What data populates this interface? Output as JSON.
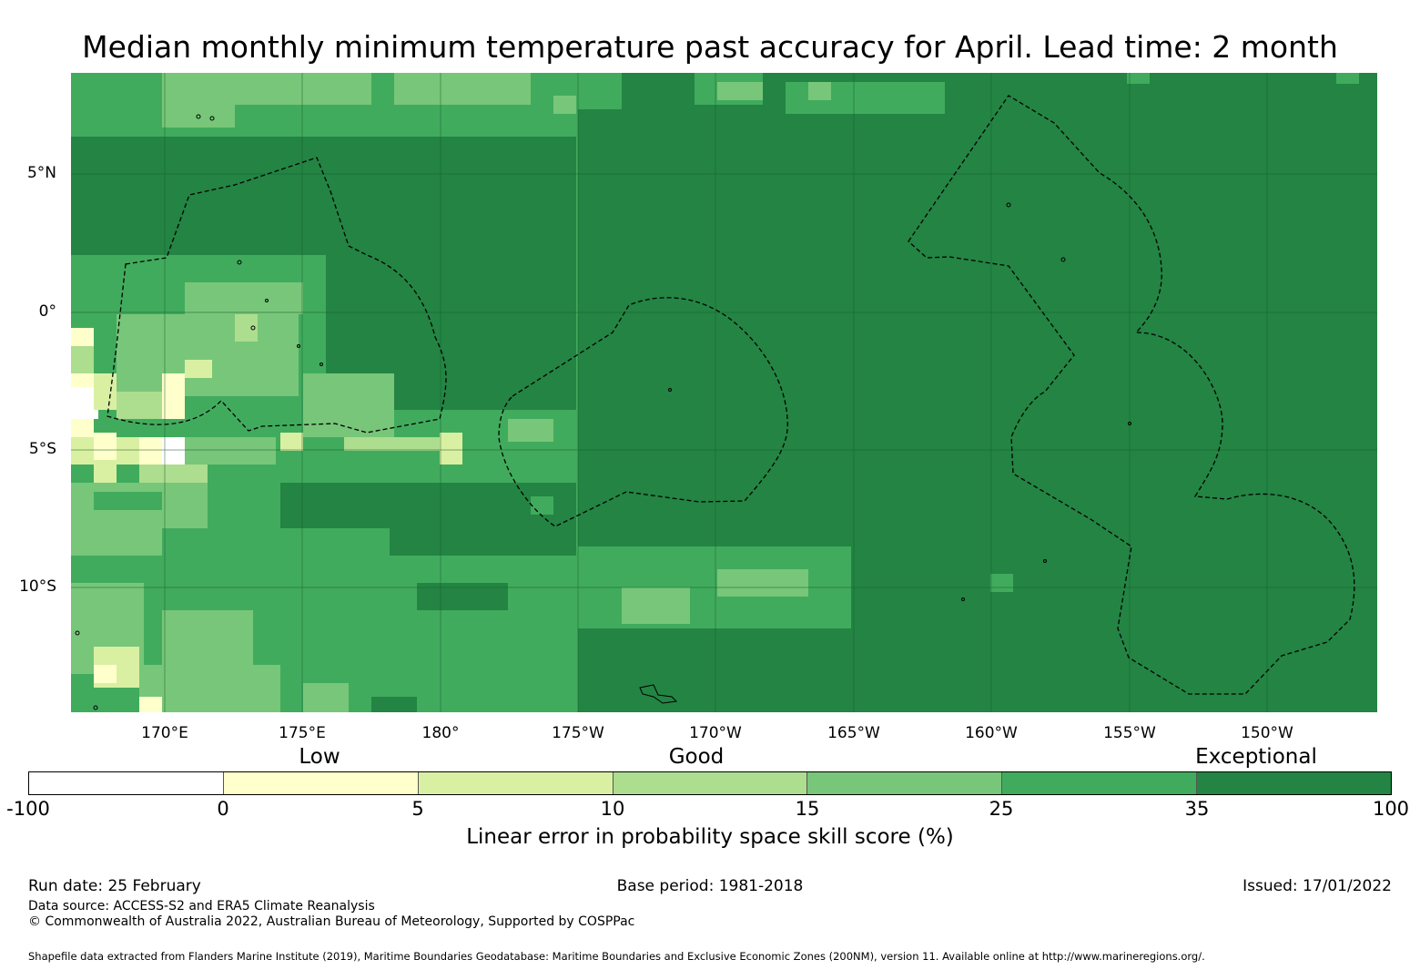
{
  "title": "Median monthly minimum temperature past accuracy for April. Lead time: 2 month",
  "map": {
    "lat_labels": [
      "5°N",
      "0°",
      "5°S",
      "10°S"
    ],
    "lon_labels": [
      "170°E",
      "175°E",
      "180°",
      "175°W",
      "170°W",
      "165°W",
      "160°W",
      "155°W",
      "150°W"
    ],
    "skill_category_colors": {
      "below_0": "#ffffff",
      "0_5": "#ffffcc",
      "5_10": "#d9f0a3",
      "10_15": "#addd8e",
      "15_25": "#78c679",
      "25_35": "#41ab5d",
      "35_100": "#238443"
    }
  },
  "legend": {
    "categories": [
      "Low",
      "Good",
      "Exceptional"
    ],
    "ticks": [
      "-100",
      "0",
      "5",
      "10",
      "15",
      "25",
      "35",
      "100"
    ],
    "colors": [
      "#ffffff",
      "#ffffcc",
      "#d9f0a3",
      "#addd8e",
      "#78c679",
      "#41ab5d",
      "#238443"
    ],
    "title": "Linear error in probability space skill score (%)"
  },
  "footer": {
    "run_date": "Run date: 25 February",
    "base_period": "Base period: 1981-2018",
    "issued": "Issued: 17/01/2022",
    "data_source": "Data source: ACCESS-S2 and ERA5 Climate Reanalysis",
    "copyright": "© Commonwealth of Australia 2022, Australian Bureau of Meteorology, Supported by COSPPac",
    "shapefile": "Shapefile data extracted from Flanders Marine Institute (2019), Maritime Boundaries Geodatabase: Maritime Boundaries and Exclusive Economic Zones (200NM), version 11. Available online at http://www.marineregions.org/."
  }
}
